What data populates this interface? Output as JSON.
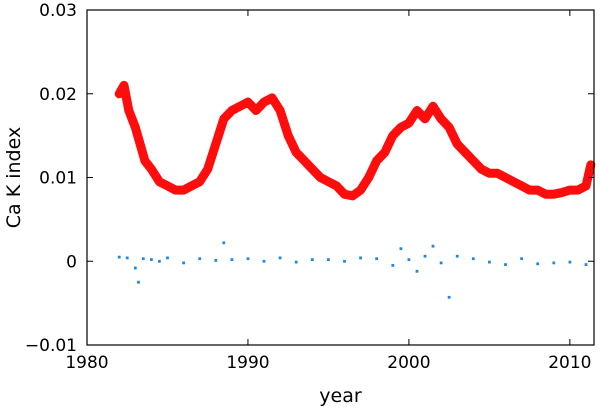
{
  "chart_data": {
    "type": "line",
    "title": "",
    "xlabel": "year",
    "ylabel": "Ca K index",
    "xlim": [
      1980,
      2011.5
    ],
    "ylim": [
      -0.01,
      0.03
    ],
    "xticks": [
      1980,
      1990,
      2000,
      2010
    ],
    "xtick_labels": [
      "1980",
      "1990",
      "2000",
      "2010"
    ],
    "yticks": [
      -0.01,
      0,
      0.01,
      0.02,
      0.03
    ],
    "ytick_labels": [
      "−0.01",
      "0",
      "0.01",
      "0.02",
      "0.03"
    ],
    "grid": false,
    "legend": "none",
    "series": [
      {
        "color": "#ff0000",
        "style": "line",
        "x": [
          1982.0,
          1982.3,
          1982.6,
          1983.0,
          1983.3,
          1983.6,
          1984.0,
          1984.5,
          1985.0,
          1985.5,
          1986.0,
          1986.5,
          1987.0,
          1987.5,
          1988.0,
          1988.5,
          1989.0,
          1989.5,
          1990.0,
          1990.5,
          1991.0,
          1991.5,
          1992.0,
          1992.5,
          1993.0,
          1993.5,
          1994.0,
          1994.5,
          1995.0,
          1995.5,
          1996.0,
          1996.5,
          1997.0,
          1997.5,
          1998.0,
          1998.5,
          1999.0,
          1999.5,
          2000.0,
          2000.5,
          2001.0,
          2001.5,
          2002.0,
          2002.5,
          2003.0,
          2003.5,
          2004.0,
          2004.5,
          2005.0,
          2005.5,
          2006.0,
          2006.5,
          2007.0,
          2007.5,
          2008.0,
          2008.5,
          2009.0,
          2009.5,
          2010.0,
          2010.5,
          2011.0,
          2011.3
        ],
        "y": [
          0.02,
          0.021,
          0.018,
          0.016,
          0.014,
          0.012,
          0.011,
          0.0095,
          0.009,
          0.0085,
          0.0085,
          0.009,
          0.0095,
          0.011,
          0.014,
          0.017,
          0.018,
          0.0185,
          0.019,
          0.018,
          0.019,
          0.0195,
          0.018,
          0.015,
          0.013,
          0.012,
          0.011,
          0.01,
          0.0095,
          0.009,
          0.008,
          0.0078,
          0.0085,
          0.01,
          0.012,
          0.013,
          0.015,
          0.016,
          0.0165,
          0.018,
          0.017,
          0.0185,
          0.017,
          0.016,
          0.014,
          0.013,
          0.012,
          0.011,
          0.0105,
          0.0105,
          0.01,
          0.0095,
          0.009,
          0.0085,
          0.0085,
          0.008,
          0.008,
          0.0082,
          0.0085,
          0.0085,
          0.009,
          0.0115
        ]
      },
      {
        "color": "#1e88e5",
        "style": "scatter",
        "x": [
          1982.0,
          1982.5,
          1983.0,
          1983.2,
          1983.5,
          1984.0,
          1984.5,
          1985.0,
          1986.0,
          1987.0,
          1988.0,
          1988.5,
          1989.0,
          1990.0,
          1991.0,
          1992.0,
          1993.0,
          1994.0,
          1995.0,
          1996.0,
          1997.0,
          1998.0,
          1999.0,
          1999.5,
          2000.0,
          2000.5,
          2001.0,
          2001.5,
          2002.0,
          2002.5,
          2003.0,
          2004.0,
          2005.0,
          2006.0,
          2007.0,
          2008.0,
          2009.0,
          2010.0,
          2011.0
        ],
        "y": [
          0.0005,
          0.0004,
          -0.0008,
          -0.0025,
          0.0003,
          0.0002,
          0.0,
          0.0004,
          -0.0002,
          0.0003,
          0.0001,
          0.0022,
          0.0002,
          0.0003,
          0.0,
          0.0004,
          -0.0001,
          0.0002,
          0.0002,
          0.0,
          0.0004,
          0.0003,
          -0.0005,
          0.0015,
          0.0002,
          -0.0012,
          0.0006,
          0.0018,
          -0.0002,
          -0.0043,
          0.0006,
          0.0003,
          -0.0001,
          -0.0004,
          0.0003,
          -0.0003,
          -0.0002,
          -0.0001,
          -0.0004
        ]
      }
    ]
  }
}
